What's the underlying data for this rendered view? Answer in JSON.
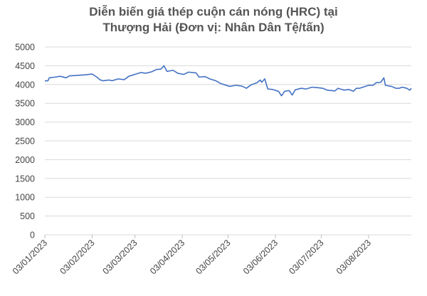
{
  "chart_data": {
    "type": "line",
    "title": "Diễn biến giá thép cuộn cán nóng (HRC) tại Thượng Hải (Đơn vị: Nhân Dân Tệ/tấn)",
    "x": [
      "03/01/2023",
      "05/01/2023",
      "06/01/2023",
      "10/01/2023",
      "13/01/2023",
      "17/01/2023",
      "19/01/2023",
      "30/01/2023",
      "03/02/2023",
      "06/02/2023",
      "08/02/2023",
      "10/02/2023",
      "14/02/2023",
      "16/02/2023",
      "20/02/2023",
      "24/02/2023",
      "27/02/2023",
      "03/03/2023",
      "07/03/2023",
      "10/03/2023",
      "14/03/2023",
      "17/03/2023",
      "20/03/2023",
      "22/03/2023",
      "24/03/2023",
      "28/03/2023",
      "31/03/2023",
      "04/04/2023",
      "07/04/2023",
      "12/04/2023",
      "14/04/2023",
      "18/04/2023",
      "21/04/2023",
      "25/04/2023",
      "28/04/2023",
      "04/05/2023",
      "08/05/2023",
      "12/05/2023",
      "15/05/2023",
      "18/05/2023",
      "22/05/2023",
      "24/05/2023",
      "25/05/2023",
      "27/05/2023",
      "29/05/2023",
      "01/06/2023",
      "05/06/2023",
      "07/06/2023",
      "09/06/2023",
      "12/06/2023",
      "14/06/2023",
      "16/06/2023",
      "20/06/2023",
      "23/06/2023",
      "27/06/2023",
      "30/06/2023",
      "04/07/2023",
      "07/07/2023",
      "12/07/2023",
      "14/07/2023",
      "18/07/2023",
      "21/07/2023",
      "24/07/2023",
      "26/07/2023",
      "28/07/2023",
      "31/07/2023",
      "03/08/2023",
      "06/08/2023",
      "08/08/2023",
      "11/08/2023",
      "13/08/2023",
      "14/08/2023",
      "18/08/2023",
      "21/08/2023",
      "23/08/2023",
      "25/08/2023",
      "28/08/2023",
      "30/08/2023",
      "31/08/2023"
    ],
    "series": [
      {
        "color": "#4472c4",
        "values": [
          4100,
          4100,
          4180,
          4200,
          4220,
          4180,
          4230,
          4260,
          4280,
          4200,
          4130,
          4100,
          4120,
          4100,
          4150,
          4130,
          4220,
          4270,
          4320,
          4300,
          4340,
          4400,
          4410,
          4500,
          4350,
          4380,
          4300,
          4270,
          4330,
          4310,
          4200,
          4210,
          4150,
          4100,
          4030,
          3950,
          3980,
          3960,
          3900,
          3990,
          4050,
          4120,
          4060,
          4150,
          3880,
          3870,
          3820,
          3700,
          3820,
          3840,
          3720,
          3860,
          3900,
          3880,
          3930,
          3920,
          3900,
          3850,
          3830,
          3900,
          3850,
          3870,
          3820,
          3900,
          3900,
          3940,
          3980,
          3980,
          4050,
          4060,
          4180,
          3980,
          3950,
          3900,
          3900,
          3930,
          3900,
          3850,
          3900
        ]
      }
    ],
    "xticks": [
      "03/01/2023",
      "03/02/2023",
      "03/03/2023",
      "03/04/2023",
      "03/05/2023",
      "03/06/2023",
      "03/07/2023",
      "03/08/2023"
    ],
    "ylim": [
      0,
      5000
    ],
    "yticks": [
      0,
      500,
      1000,
      1500,
      2000,
      2500,
      3000,
      3500,
      4000,
      4500,
      5000
    ],
    "grid": true
  }
}
